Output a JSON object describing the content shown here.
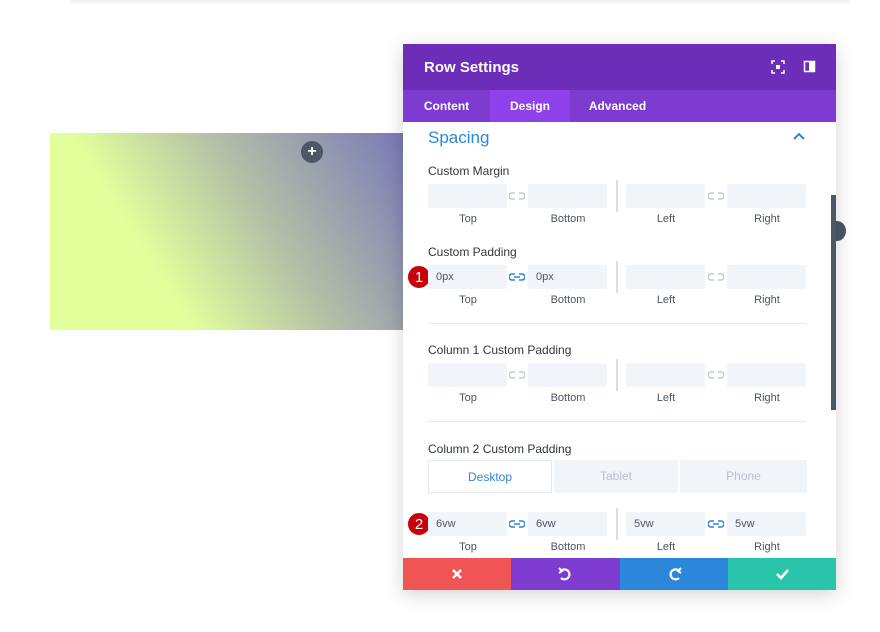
{
  "header": {
    "title": "Row Settings"
  },
  "tabs": {
    "items": [
      "Content",
      "Design",
      "Advanced"
    ],
    "active": 1
  },
  "section": {
    "title": "Spacing"
  },
  "side_labels": [
    "Top",
    "Bottom",
    "Left",
    "Right"
  ],
  "groups": [
    {
      "label": "Custom Margin"
    },
    {
      "label": "Custom Padding",
      "badge": "1",
      "inputs": [
        "0px",
        "0px"
      ]
    },
    {
      "label": "Column 1 Custom Padding"
    },
    {
      "label": "Column 2 Custom Padding",
      "badge": "2",
      "devices": [
        "Desktop",
        "Tablet",
        "Phone"
      ],
      "inputs": [
        "6vw",
        "6vw",
        "5vw",
        "5vw"
      ]
    }
  ]
}
